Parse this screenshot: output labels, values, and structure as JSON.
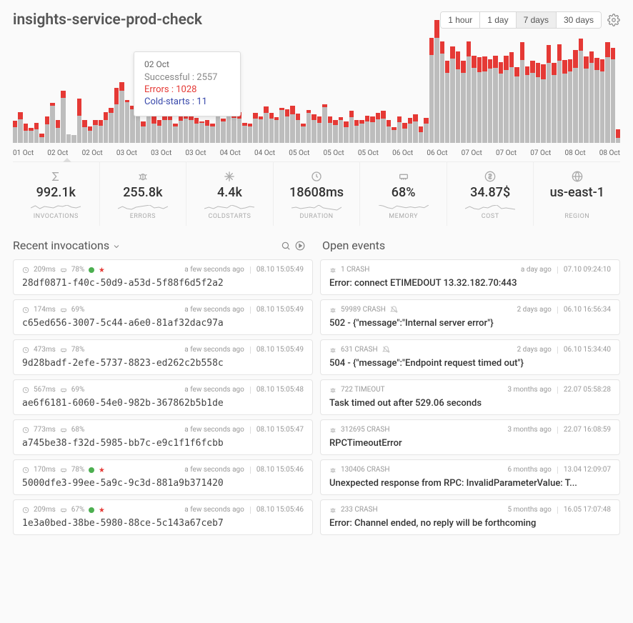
{
  "header": {
    "title": "insights-service-prod-check",
    "ranges": [
      "1 hour",
      "1 day",
      "7 days",
      "30 days"
    ],
    "active_range_index": 2
  },
  "chart": {
    "type": "stacked-bar",
    "background_color": "#fafafa",
    "bar_color": "#bdbdbd",
    "error_color": "#e53935",
    "ylim": [
      0,
      3600
    ],
    "axis_labels": [
      "01 Oct",
      "02 Oct",
      "02 Oct",
      "03 Oct",
      "03 Oct",
      "03 Oct",
      "04 Oct",
      "04 Oct",
      "05 Oct",
      "05 Oct",
      "05 Oct",
      "06 Oct",
      "06 Oct",
      "07 Oct",
      "07 Oct",
      "07 Oct",
      "08 Oct",
      "08 Oct"
    ],
    "bars": [
      {
        "s": 520,
        "e": 220
      },
      {
        "s": 800,
        "e": 240
      },
      {
        "s": 420,
        "e": 240
      },
      {
        "s": 400,
        "e": 100
      },
      {
        "s": 460,
        "e": 220
      },
      {
        "s": 200,
        "e": 120
      },
      {
        "s": 620,
        "e": 260
      },
      {
        "s": 1250,
        "e": 100
      },
      {
        "s": 500,
        "e": 260
      },
      {
        "s": 1520,
        "e": 240
      },
      {
        "s": 300,
        "e": 0
      },
      {
        "s": 260,
        "e": 0
      },
      {
        "s": 920,
        "e": 560
      },
      {
        "s": 520,
        "e": 260
      },
      {
        "s": 400,
        "e": 160
      },
      {
        "s": 600,
        "e": 160
      },
      {
        "s": 580,
        "e": 200
      },
      {
        "s": 760,
        "e": 280
      },
      {
        "s": 1020,
        "e": 160
      },
      {
        "s": 1300,
        "e": 560
      },
      {
        "s": 1760,
        "e": 280
      },
      {
        "s": 1360,
        "e": 80
      },
      {
        "s": 1120,
        "e": 140
      },
      {
        "s": 880,
        "e": 260
      },
      {
        "s": 560,
        "e": 160
      },
      {
        "s": 960,
        "e": 160
      },
      {
        "s": 640,
        "e": 280
      },
      {
        "s": 580,
        "e": 200
      },
      {
        "s": 770,
        "e": 180
      },
      {
        "s": 760,
        "e": 240
      },
      {
        "s": 560,
        "e": 100
      },
      {
        "s": 740,
        "e": 140
      },
      {
        "s": 820,
        "e": 60
      },
      {
        "s": 760,
        "e": 160
      },
      {
        "s": 640,
        "e": 200
      },
      {
        "s": 660,
        "e": 60
      },
      {
        "s": 570,
        "e": 200
      },
      {
        "s": 560,
        "e": 100
      },
      {
        "s": 960,
        "e": 80
      },
      {
        "s": 720,
        "e": 100
      },
      {
        "s": 940,
        "e": 200
      },
      {
        "s": 840,
        "e": 80
      },
      {
        "s": 820,
        "e": 220
      },
      {
        "s": 580,
        "e": 100
      },
      {
        "s": 560,
        "e": 100
      },
      {
        "s": 820,
        "e": 200
      },
      {
        "s": 800,
        "e": 100
      },
      {
        "s": 1020,
        "e": 200
      },
      {
        "s": 820,
        "e": 180
      },
      {
        "s": 760,
        "e": 100
      },
      {
        "s": 1100,
        "e": 80
      },
      {
        "s": 880,
        "e": 260
      },
      {
        "s": 960,
        "e": 300
      },
      {
        "s": 780,
        "e": 200
      },
      {
        "s": 560,
        "e": 100
      },
      {
        "s": 1000,
        "e": 100
      },
      {
        "s": 760,
        "e": 200
      },
      {
        "s": 680,
        "e": 200
      },
      {
        "s": 1200,
        "e": 100
      },
      {
        "s": 680,
        "e": 200
      },
      {
        "s": 600,
        "e": 180
      },
      {
        "s": 770,
        "e": 100
      },
      {
        "s": 520,
        "e": 200
      },
      {
        "s": 860,
        "e": 220
      },
      {
        "s": 580,
        "e": 180
      },
      {
        "s": 640,
        "e": 120
      },
      {
        "s": 720,
        "e": 200
      },
      {
        "s": 700,
        "e": 180
      },
      {
        "s": 800,
        "e": 200
      },
      {
        "s": 820,
        "e": 260
      },
      {
        "s": 560,
        "e": 200
      },
      {
        "s": 440,
        "e": 100
      },
      {
        "s": 700,
        "e": 200
      },
      {
        "s": 480,
        "e": 200
      },
      {
        "s": 640,
        "e": 200
      },
      {
        "s": 720,
        "e": 240
      },
      {
        "s": 360,
        "e": 200
      },
      {
        "s": 640,
        "e": 200
      },
      {
        "s": 2960,
        "e": 580
      },
      {
        "s": 3540,
        "e": 600
      },
      {
        "s": 3000,
        "e": 400
      },
      {
        "s": 2360,
        "e": 400
      },
      {
        "s": 2840,
        "e": 400
      },
      {
        "s": 2480,
        "e": 600
      },
      {
        "s": 2360,
        "e": 400
      },
      {
        "s": 2900,
        "e": 500
      },
      {
        "s": 2520,
        "e": 400
      },
      {
        "s": 2380,
        "e": 500
      },
      {
        "s": 2400,
        "e": 500
      },
      {
        "s": 2500,
        "e": 300
      },
      {
        "s": 2520,
        "e": 400
      },
      {
        "s": 2320,
        "e": 400
      },
      {
        "s": 2460,
        "e": 470
      },
      {
        "s": 2540,
        "e": 500
      },
      {
        "s": 2240,
        "e": 300
      },
      {
        "s": 2780,
        "e": 600
      },
      {
        "s": 2280,
        "e": 300
      },
      {
        "s": 2360,
        "e": 400
      },
      {
        "s": 2200,
        "e": 500
      },
      {
        "s": 2140,
        "e": 500
      },
      {
        "s": 2680,
        "e": 600
      },
      {
        "s": 2280,
        "e": 400
      },
      {
        "s": 2760,
        "e": 550
      },
      {
        "s": 2340,
        "e": 440
      },
      {
        "s": 2400,
        "e": 420
      },
      {
        "s": 2520,
        "e": 600
      },
      {
        "s": 3100,
        "e": 400
      },
      {
        "s": 2500,
        "e": 400
      },
      {
        "s": 2680,
        "e": 400
      },
      {
        "s": 2450,
        "e": 400
      },
      {
        "s": 2400,
        "e": 400
      },
      {
        "s": 2880,
        "e": 500
      },
      {
        "s": 2820,
        "e": 380
      },
      {
        "s": 180,
        "e": 280
      }
    ],
    "tooltip": {
      "date": "02 Oct",
      "successful_label": "Successful",
      "successful_value": "2557",
      "errors_label": "Errors",
      "errors_value": "1028",
      "cold_label": "Cold-starts",
      "cold_value": "11"
    }
  },
  "stats": [
    {
      "icon": "sigma",
      "value": "992.1k",
      "label": "INVOCATIONS",
      "spark": [
        6,
        9,
        5,
        8,
        7,
        6,
        9,
        8,
        10,
        7,
        6,
        8
      ]
    },
    {
      "icon": "bug",
      "value": "255.8k",
      "label": "ERRORS",
      "spark": [
        5,
        8,
        5,
        4,
        7,
        8,
        9,
        10,
        6,
        7,
        5,
        8
      ]
    },
    {
      "icon": "snow",
      "value": "4.4k",
      "label": "COLDSTARTS",
      "spark": [
        5,
        7,
        5,
        8,
        7,
        6,
        10,
        8,
        5,
        6,
        8,
        7
      ]
    },
    {
      "icon": "clock",
      "value": "18608ms",
      "label": "DURATION",
      "spark": [
        6,
        7,
        5,
        6,
        7,
        6,
        10,
        6,
        5,
        4,
        3,
        7
      ]
    },
    {
      "icon": "memory",
      "value": "68%",
      "label": "MEMORY",
      "spark": [
        8,
        7,
        5,
        4,
        7,
        6,
        5,
        6,
        5,
        6,
        5,
        8
      ]
    },
    {
      "icon": "dollar",
      "value": "34.87$",
      "label": "COST",
      "spark": [
        5,
        8,
        5,
        4,
        7,
        6,
        9,
        10,
        5,
        6,
        5,
        4
      ]
    },
    {
      "icon": "globe",
      "value": "us-east-1",
      "label": "REGION",
      "spark": null
    }
  ],
  "recent_header": "Recent invocations",
  "open_header": "Open events",
  "invocations": [
    {
      "dur": "209ms",
      "mem": "78%",
      "dots": true,
      "age": "a few seconds ago",
      "ts": "08.10 15:05:49",
      "id": "28df0871-f40c-50d9-a53d-5f88f6d5f2a2"
    },
    {
      "dur": "174ms",
      "mem": "69%",
      "dots": false,
      "age": "a few seconds ago",
      "ts": "08.10 15:05:49",
      "id": "c65ed656-3007-5c44-a6e0-81af32dac97a"
    },
    {
      "dur": "473ms",
      "mem": "78%",
      "dots": false,
      "age": "a few seconds ago",
      "ts": "08.10 15:05:49",
      "id": "9d28badf-2efe-5737-8823-ed262c2b558c"
    },
    {
      "dur": "567ms",
      "mem": "69%",
      "dots": false,
      "age": "a few seconds ago",
      "ts": "08.10 15:05:48",
      "id": "ae6f6181-6060-54e0-982b-367862b5b1de"
    },
    {
      "dur": "773ms",
      "mem": "68%",
      "dots": false,
      "age": "a few seconds ago",
      "ts": "08.10 15:05:47",
      "id": "a745be38-f32d-5985-bb7c-e9c1f1f6fcbb"
    },
    {
      "dur": "170ms",
      "mem": "78%",
      "dots": true,
      "age": "a few seconds ago",
      "ts": "08.10 15:05:46",
      "id": "5000dfe3-99ee-5a9c-9c3d-881a9b371420"
    },
    {
      "dur": "209ms",
      "mem": "67%",
      "dots": true,
      "age": "a few seconds ago",
      "ts": "08.10 15:05:46",
      "id": "1e3a0bed-38be-5980-88ce-5c143a67ceb7"
    }
  ],
  "events": [
    {
      "count": "1",
      "type": "CRASH",
      "muted": false,
      "age": "a day ago",
      "ts": "07.10 09:24:10",
      "msg": "Error: connect ETIMEDOUT 13.32.182.70:443"
    },
    {
      "count": "59989",
      "type": "CRASH",
      "muted": true,
      "age": "2 days ago",
      "ts": "06.10 16:56:34",
      "msg": "502 - {\"message\":\"Internal server error\"}"
    },
    {
      "count": "631",
      "type": "CRASH",
      "muted": true,
      "age": "2 days ago",
      "ts": "06.10 15:34:40",
      "msg": "504 - {\"message\":\"Endpoint request timed out\"}"
    },
    {
      "count": "722",
      "type": "TIMEOUT",
      "muted": false,
      "age": "3 months ago",
      "ts": "22.07 05:58:28",
      "msg": "Task timed out after 529.06 seconds"
    },
    {
      "count": "312695",
      "type": "CRASH",
      "muted": false,
      "age": "3 months ago",
      "ts": "22.07 16:08:59",
      "msg": "RPCTimeoutError"
    },
    {
      "count": "130406",
      "type": "CRASH",
      "muted": false,
      "age": "6 months ago",
      "ts": "13.04 12:09:07",
      "msg": "Unexpected response from RPC: InvalidParameterValue: T..."
    },
    {
      "count": "233",
      "type": "CRASH",
      "muted": false,
      "age": "5 months ago",
      "ts": "16.05 17:07:48",
      "msg": "Error: Channel ended, no reply will be forthcoming"
    }
  ]
}
